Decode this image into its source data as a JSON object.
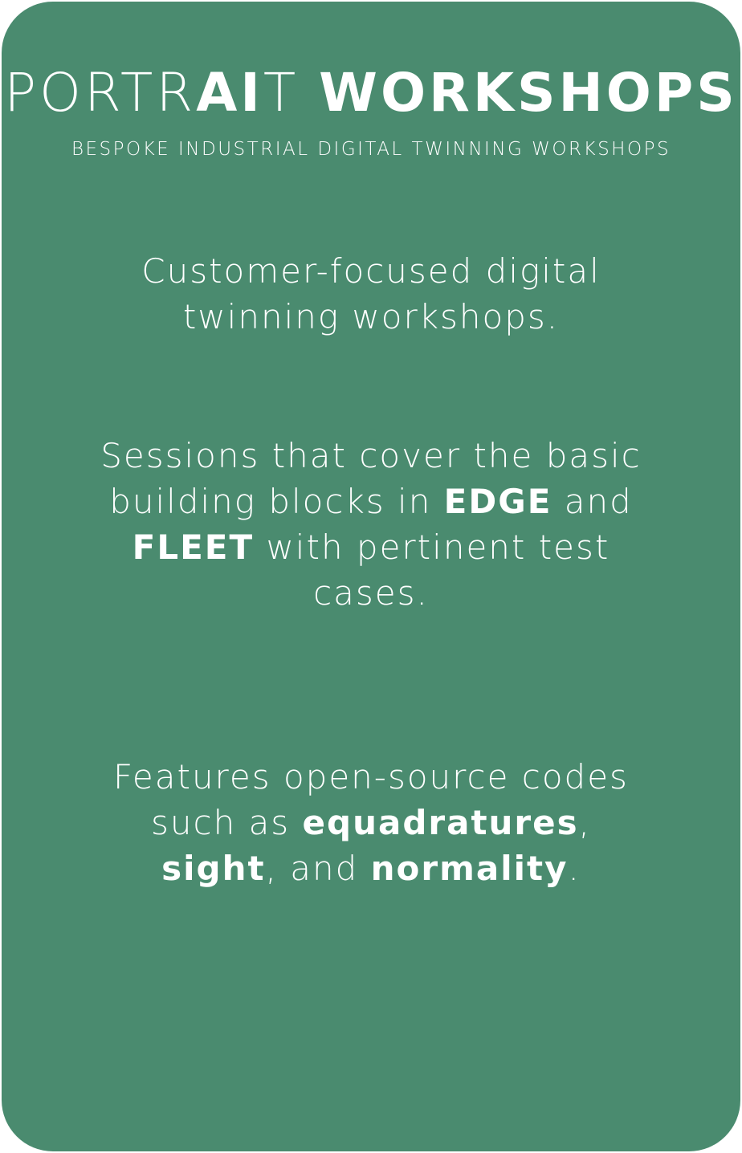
{
  "card": {
    "background_color": "#4a8b6f",
    "text_color": "#ffffff"
  },
  "title": {
    "part_light_1": "PORTR",
    "part_bold_1": "AI",
    "part_light_2": "T",
    "part_bold_2": "WORKSHOPS"
  },
  "subtitle": "BESPOKE INDUSTRIAL DIGITAL TWINNING WORKSHOPS",
  "paragraph1": {
    "text": "Customer-focused digital twinning workshops."
  },
  "paragraph2": {
    "t1": "Sessions that cover the basic building blocks in ",
    "edge": "EDGE",
    "t2": " and ",
    "fleet": "FLEET",
    "t3": " with pertinent test cases."
  },
  "paragraph3": {
    "t1": "Features open-source codes such as ",
    "code1": "equadratures",
    "sep1": ", ",
    "code2": "sight",
    "sep2": ", and ",
    "code3": "normality",
    "end": "."
  }
}
